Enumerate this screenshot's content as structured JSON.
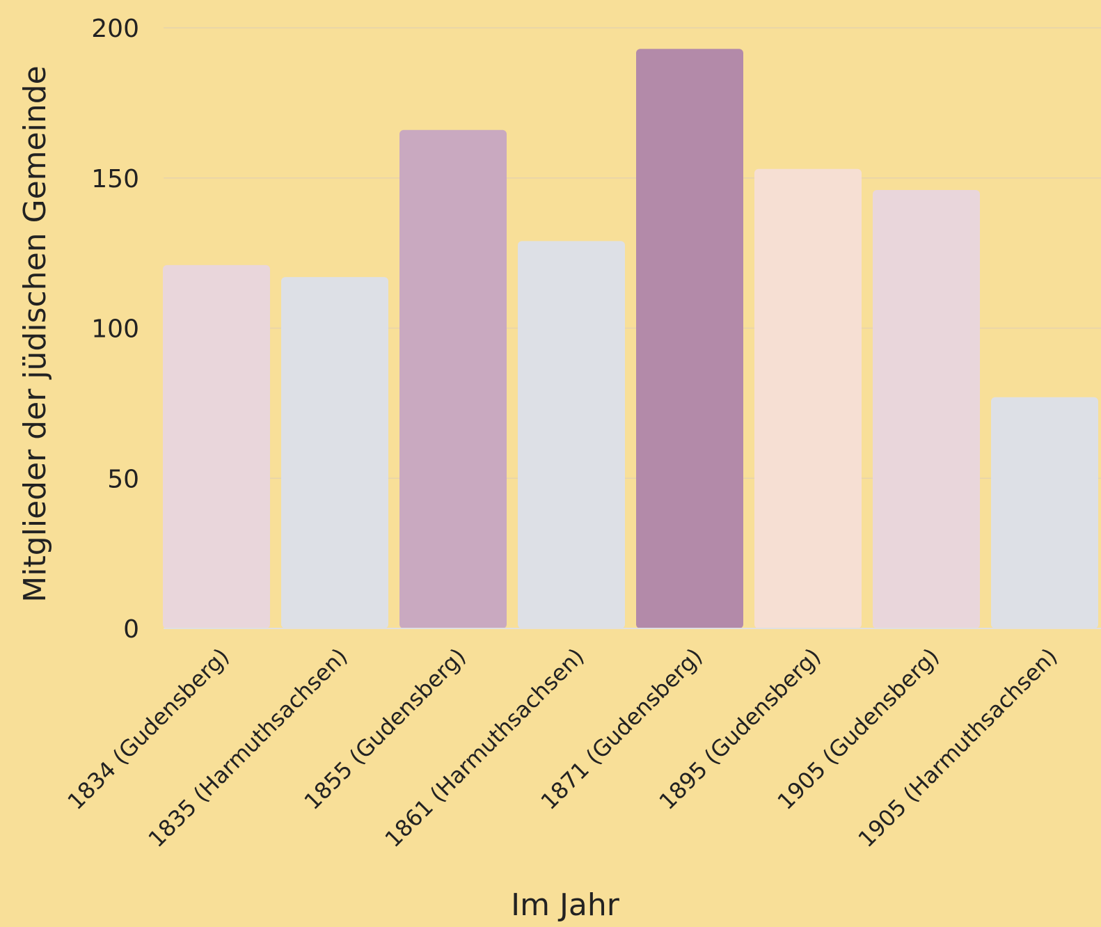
{
  "chart_data": {
    "type": "bar",
    "categories": [
      "1834 (Gudensberg)",
      "1835 (Harmuthsachsen)",
      "1855 (Gudensberg)",
      "1861 (Harmuthsachsen)",
      "1871 (Gudensberg)",
      "1895 (Gudensberg)",
      "1905 (Gudensberg)",
      "1905 (Harmuthsachsen)"
    ],
    "values": [
      121,
      117,
      166,
      129,
      193,
      153,
      146,
      77
    ],
    "bar_colors": [
      "#e9d6db",
      "#dde0e6",
      "#c9a9c0",
      "#dde0e6",
      "#b38aa9",
      "#f6dfd3",
      "#e9d6db",
      "#dde0e6"
    ],
    "xlabel": "Im Jahr",
    "ylabel": "Mitglieder der jüdischen Gemeinde",
    "ylim": [
      0,
      200
    ],
    "yticks": [
      0,
      50,
      100,
      150,
      200
    ],
    "grid": true,
    "background": "#f8df98"
  }
}
